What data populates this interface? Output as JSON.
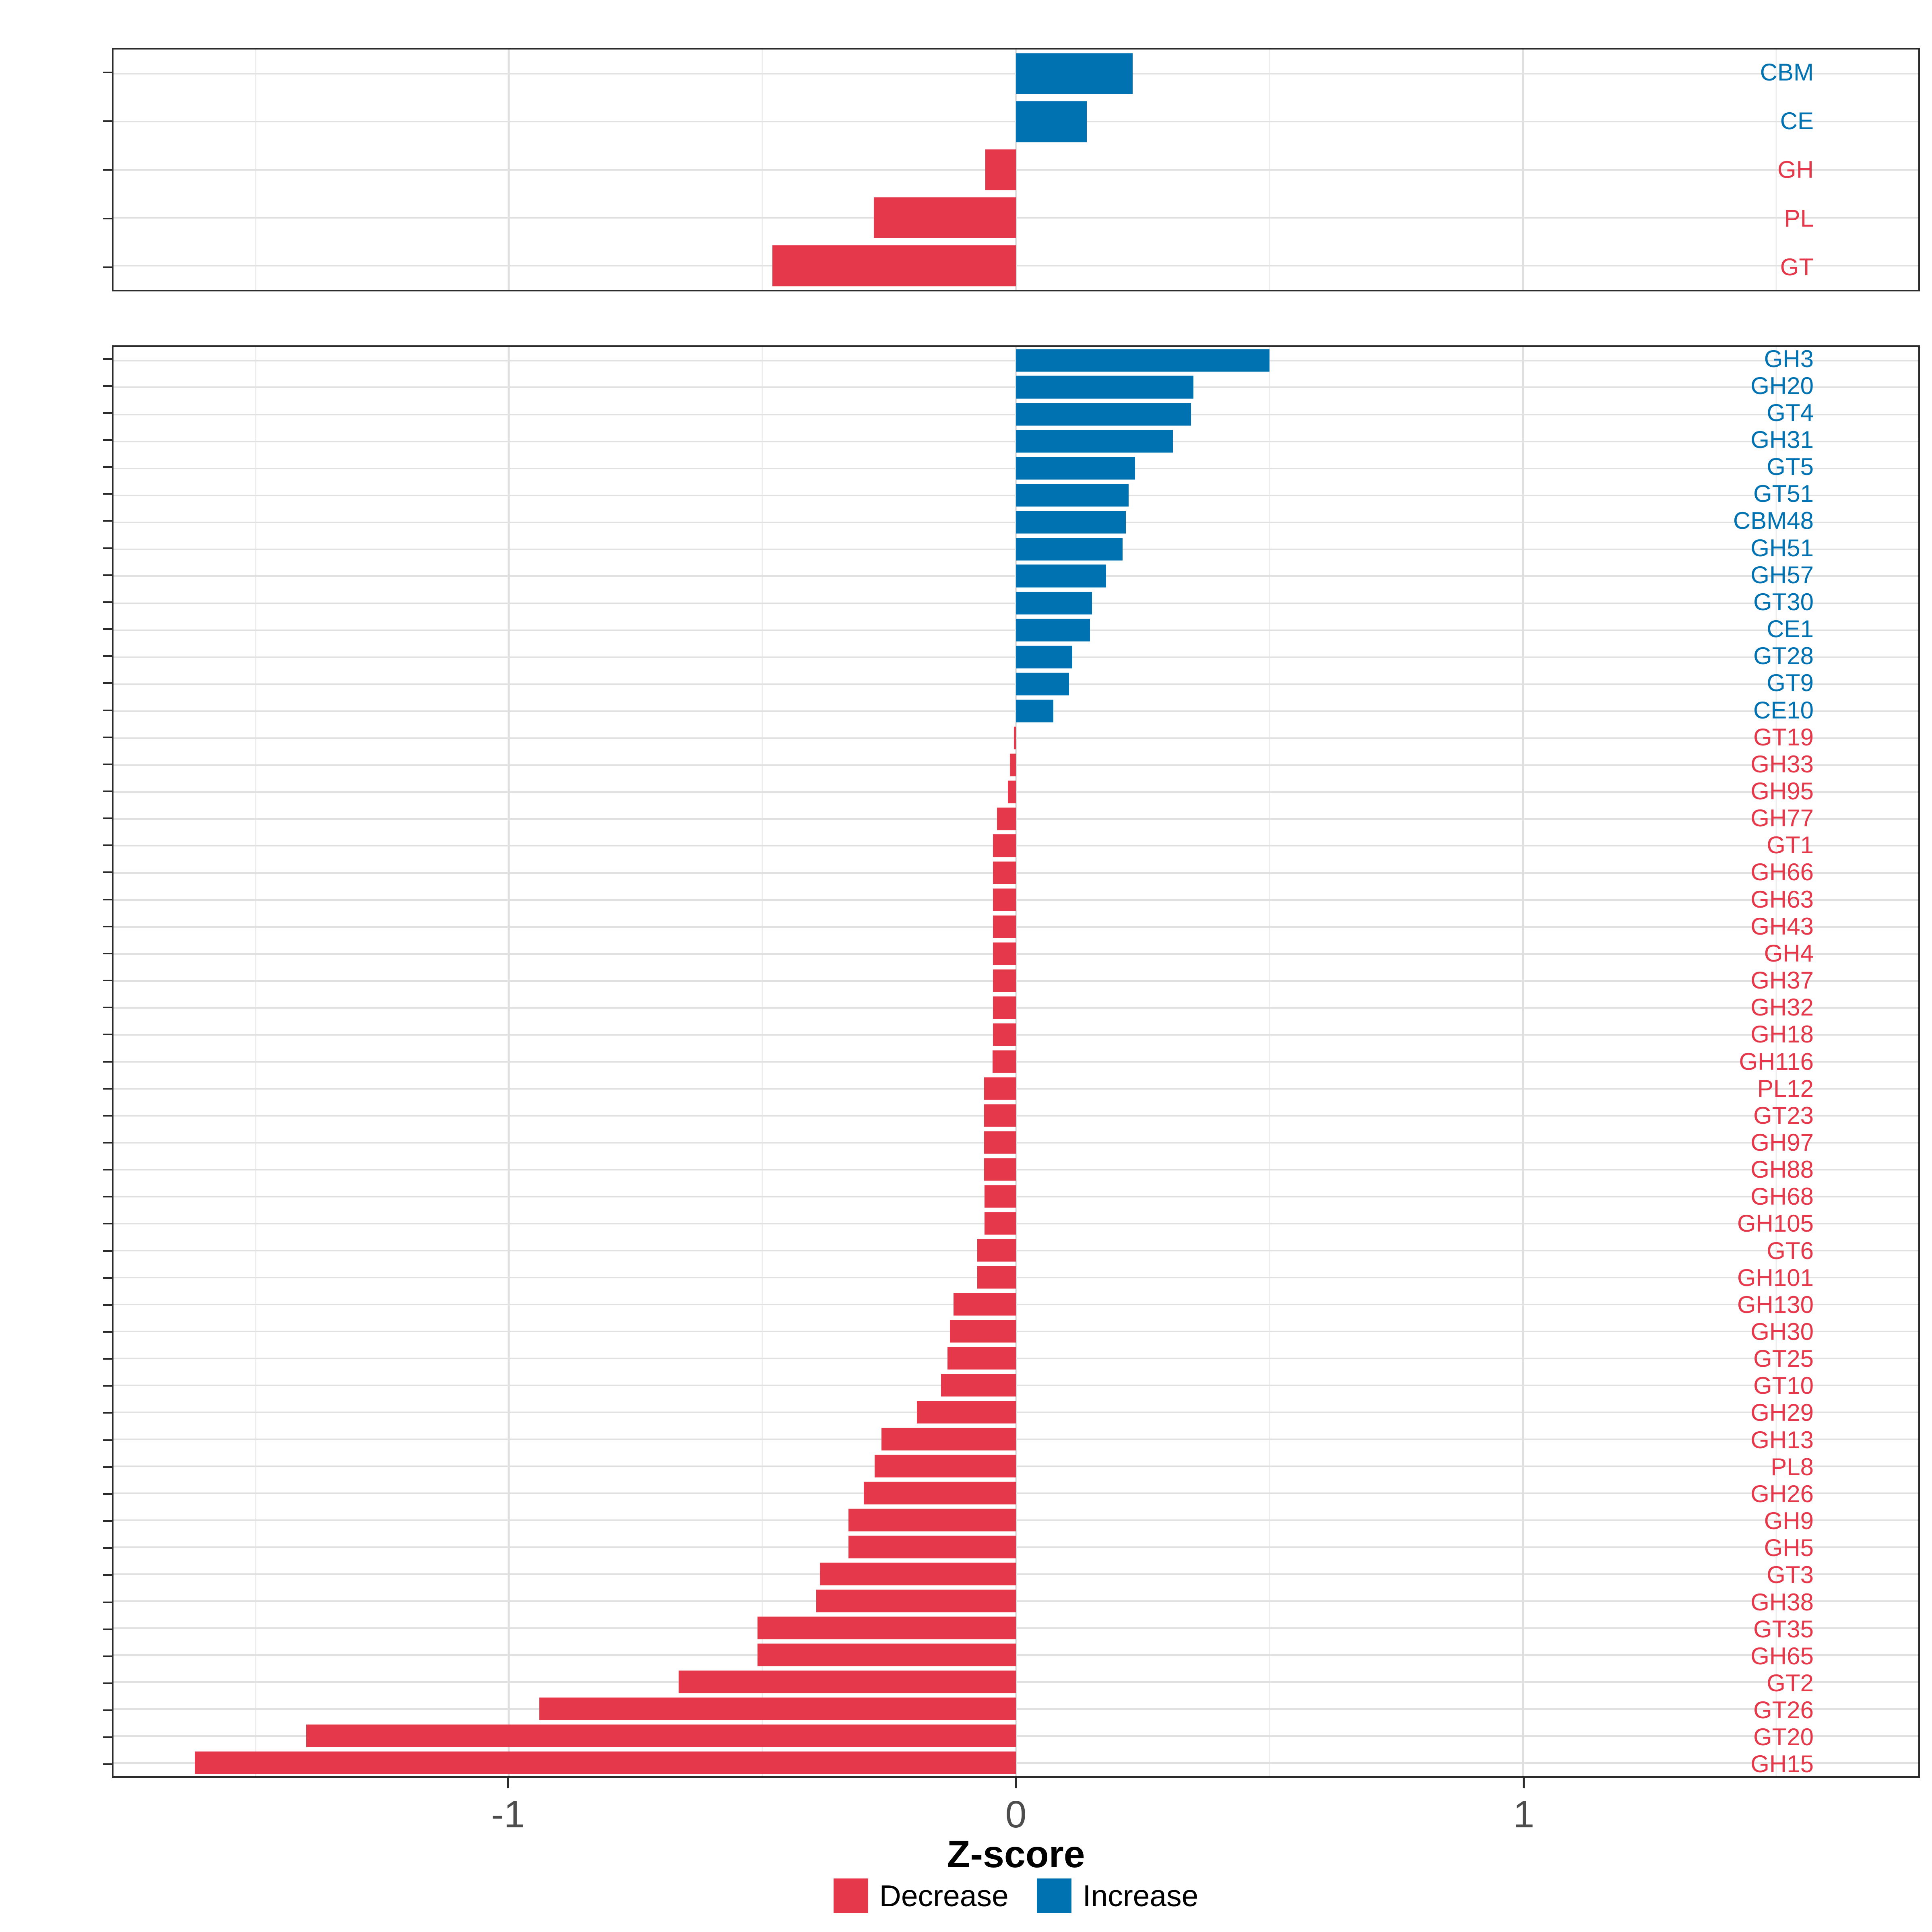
{
  "axis": {
    "title": "Z-score",
    "domain": [
      -1.78,
      1.78
    ],
    "ticks": [
      {
        "value": -1,
        "label": "-1"
      },
      {
        "value": 0,
        "label": "0"
      },
      {
        "value": 1,
        "label": "1"
      }
    ],
    "minor_ticks": [
      -1.5,
      -0.5,
      0.5,
      1.5
    ]
  },
  "colors": {
    "decrease": "#e5384b",
    "increase": "#0072b2",
    "grid_major": "#dfdfdf",
    "grid_minor": "#ededed",
    "panel_border": "#2b2b2b",
    "axis_text": "#4d4d4d"
  },
  "legend": {
    "items": [
      {
        "label": "Decrease",
        "color": "#e5384b"
      },
      {
        "label": "Increase",
        "color": "#0072b2"
      }
    ]
  },
  "chart_data": [
    {
      "type": "bar",
      "orientation": "horizontal",
      "panel": "cazyme-classes",
      "xlabel": "Z-score",
      "xlim": [
        -1.78,
        1.78
      ],
      "grid": true,
      "legend_position": "bottom",
      "categories": [
        "CBM",
        "CE",
        "GH",
        "PL",
        "GT"
      ],
      "values": [
        0.23,
        0.14,
        -0.06,
        -0.28,
        -0.48
      ]
    },
    {
      "type": "bar",
      "orientation": "horizontal",
      "panel": "cazyme-families",
      "xlabel": "Z-score",
      "xlim": [
        -1.78,
        1.78
      ],
      "grid": true,
      "legend_position": "bottom",
      "categories": [
        "GH3",
        "GH20",
        "GT4",
        "GH31",
        "GT5",
        "GT51",
        "CBM48",
        "GH51",
        "GH57",
        "GT30",
        "CE1",
        "GT28",
        "GT9",
        "CE10",
        "GT19",
        "GH33",
        "GH95",
        "GH77",
        "GT1",
        "GH66",
        "GH63",
        "GH43",
        "GH4",
        "GH37",
        "GH32",
        "GH18",
        "GH116",
        "PL12",
        "GT23",
        "GH97",
        "GH88",
        "GH68",
        "GH105",
        "GT6",
        "GH101",
        "GH130",
        "GH30",
        "GT25",
        "GT10",
        "GH29",
        "GH13",
        "PL8",
        "GH26",
        "GH9",
        "GH5",
        "GT3",
        "GH38",
        "GT35",
        "GH65",
        "GT2",
        "GT26",
        "GT20",
        "GH15"
      ],
      "values": [
        0.5,
        0.35,
        0.345,
        0.31,
        0.235,
        0.222,
        0.217,
        0.21,
        0.178,
        0.15,
        0.146,
        0.111,
        0.105,
        0.074,
        -0.004,
        -0.012,
        -0.016,
        -0.037,
        -0.045,
        -0.045,
        -0.045,
        -0.045,
        -0.045,
        -0.045,
        -0.045,
        -0.045,
        -0.046,
        -0.063,
        -0.063,
        -0.063,
        -0.063,
        -0.062,
        -0.062,
        -0.076,
        -0.076,
        -0.123,
        -0.13,
        -0.135,
        -0.148,
        -0.195,
        -0.265,
        -0.279,
        -0.3,
        -0.33,
        -0.33,
        -0.387,
        -0.394,
        -0.51,
        -0.51,
        -0.665,
        -0.94,
        -1.4,
        -1.62
      ]
    }
  ]
}
